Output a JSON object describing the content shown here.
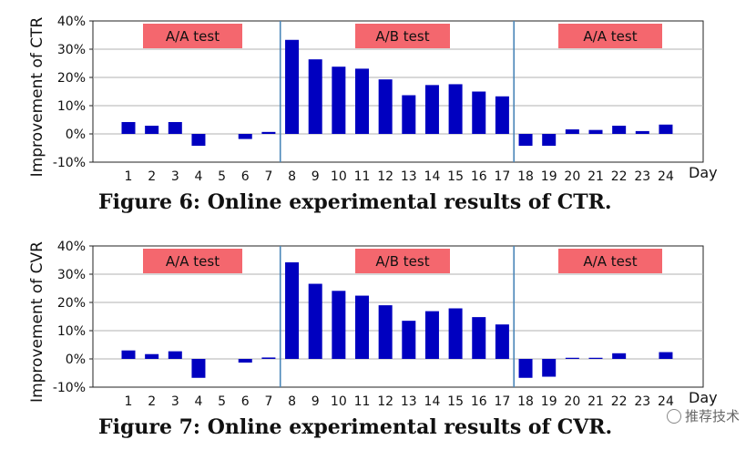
{
  "chart_data": [
    {
      "type": "bar",
      "title": "Figure 6: Online experimental results of CTR.",
      "ylabel": "Improvement of CTR",
      "xlabel": "Day",
      "categories": [
        "1",
        "2",
        "3",
        "4",
        "5",
        "6",
        "7",
        "8",
        "9",
        "10",
        "11",
        "12",
        "13",
        "14",
        "15",
        "16",
        "17",
        "18",
        "19",
        "20",
        "21",
        "22",
        "23",
        "24"
      ],
      "values": [
        4.2,
        2.9,
        4.2,
        -4.2,
        0,
        -1.8,
        0.7,
        33.3,
        26.4,
        23.8,
        23.1,
        19.3,
        13.7,
        17.3,
        17.6,
        15.0,
        13.3,
        -4.2,
        -4.2,
        1.6,
        1.4,
        2.9,
        1.0,
        3.3
      ],
      "ylim": [
        -10,
        40
      ],
      "yticks": [
        "-10%",
        "0%",
        "10%",
        "20%",
        "30%",
        "40%"
      ],
      "bar_color": "#0000c0",
      "phases": [
        {
          "label": "A/A test",
          "days": [
            1,
            7
          ]
        },
        {
          "label": "A/B test",
          "days": [
            8,
            17
          ]
        },
        {
          "label": "A/A test",
          "days": [
            18,
            24
          ]
        }
      ],
      "label_color": "#f4676e",
      "divider_color": "#4a86b8"
    },
    {
      "type": "bar",
      "title": "Figure 7: Online experimental results of CVR.",
      "ylabel": "Improvement of CVR",
      "xlabel": "Day",
      "categories": [
        "1",
        "2",
        "3",
        "4",
        "5",
        "6",
        "7",
        "8",
        "9",
        "10",
        "11",
        "12",
        "13",
        "14",
        "15",
        "16",
        "17",
        "18",
        "19",
        "20",
        "21",
        "22",
        "23",
        "24"
      ],
      "values": [
        3.0,
        1.7,
        2.7,
        -6.7,
        0,
        -1.3,
        0.5,
        34.2,
        26.6,
        24.1,
        22.4,
        19.0,
        13.5,
        16.9,
        17.9,
        14.8,
        12.2,
        -6.7,
        -6.3,
        0.4,
        0.4,
        2.0,
        0,
        2.4
      ],
      "ylim": [
        -10,
        40
      ],
      "yticks": [
        "-10%",
        "0%",
        "10%",
        "20%",
        "30%",
        "40%"
      ],
      "bar_color": "#0000c0",
      "phases": [
        {
          "label": "A/A test",
          "days": [
            1,
            7
          ]
        },
        {
          "label": "A/B test",
          "days": [
            8,
            17
          ]
        },
        {
          "label": "A/A test",
          "days": [
            18,
            24
          ]
        }
      ],
      "label_color": "#f4676e",
      "divider_color": "#4a86b8"
    }
  ],
  "watermark": "推荐技术"
}
